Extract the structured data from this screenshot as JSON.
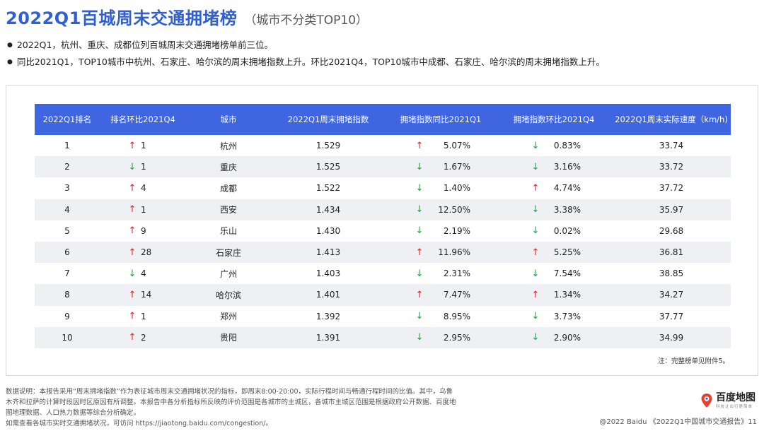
{
  "header": {
    "title": "2022Q1百城周末交通拥堵榜",
    "subtitle": "（城市不分类TOP10）"
  },
  "bullets": [
    "2022Q1，杭州、重庆、成都位列百城周末交通拥堵榜单前三位。",
    "同比2021Q1，TOP10城市中杭州、石家庄、哈尔滨的周末拥堵指数上升。环比2021Q4，TOP10城市中成都、石家庄、哈尔滨的周末拥堵指数上升。"
  ],
  "table": {
    "columns": [
      "2022Q1排名",
      "排名环比2021Q4",
      "城市",
      "2022Q1周末拥堵指数",
      "拥堵指数同比2021Q1",
      "拥堵指数环比2021Q4",
      "2022Q1周末实际速度（km/h)"
    ],
    "rows": [
      {
        "rank": "1",
        "rank_dir": "up",
        "rank_change": "1",
        "city": "杭州",
        "index": "1.529",
        "yoy_dir": "up",
        "yoy": "5.07%",
        "qoq_dir": "down",
        "qoq": "0.83%",
        "speed": "33.74"
      },
      {
        "rank": "2",
        "rank_dir": "down",
        "rank_change": "1",
        "city": "重庆",
        "index": "1.525",
        "yoy_dir": "down",
        "yoy": "1.67%",
        "qoq_dir": "down",
        "qoq": "3.16%",
        "speed": "33.72"
      },
      {
        "rank": "3",
        "rank_dir": "up",
        "rank_change": "4",
        "city": "成都",
        "index": "1.522",
        "yoy_dir": "down",
        "yoy": "1.40%",
        "qoq_dir": "up",
        "qoq": "4.74%",
        "speed": "37.72"
      },
      {
        "rank": "4",
        "rank_dir": "up",
        "rank_change": "1",
        "city": "西安",
        "index": "1.434",
        "yoy_dir": "down",
        "yoy": "12.50%",
        "qoq_dir": "down",
        "qoq": "3.38%",
        "speed": "35.97"
      },
      {
        "rank": "5",
        "rank_dir": "up",
        "rank_change": "9",
        "city": "乐山",
        "index": "1.430",
        "yoy_dir": "down",
        "yoy": "2.19%",
        "qoq_dir": "down",
        "qoq": "0.02%",
        "speed": "29.68"
      },
      {
        "rank": "6",
        "rank_dir": "up",
        "rank_change": "28",
        "city": "石家庄",
        "index": "1.413",
        "yoy_dir": "up",
        "yoy": "11.96%",
        "qoq_dir": "up",
        "qoq": "5.25%",
        "speed": "36.81"
      },
      {
        "rank": "7",
        "rank_dir": "down",
        "rank_change": "4",
        "city": "广州",
        "index": "1.403",
        "yoy_dir": "down",
        "yoy": "2.31%",
        "qoq_dir": "down",
        "qoq": "7.54%",
        "speed": "38.85"
      },
      {
        "rank": "8",
        "rank_dir": "up",
        "rank_change": "14",
        "city": "哈尔滨",
        "index": "1.401",
        "yoy_dir": "up",
        "yoy": "7.47%",
        "qoq_dir": "up",
        "qoq": "1.34%",
        "speed": "34.27"
      },
      {
        "rank": "9",
        "rank_dir": "up",
        "rank_change": "1",
        "city": "郑州",
        "index": "1.392",
        "yoy_dir": "down",
        "yoy": "8.95%",
        "qoq_dir": "down",
        "qoq": "3.73%",
        "speed": "37.77"
      },
      {
        "rank": "10",
        "rank_dir": "up",
        "rank_change": "2",
        "city": "贵阳",
        "index": "1.391",
        "yoy_dir": "down",
        "yoy": "2.95%",
        "qoq_dir": "down",
        "qoq": "2.90%",
        "speed": "34.99"
      }
    ],
    "note": "注：完整榜单见附件5。"
  },
  "arrows": {
    "up": "↑",
    "down": "↓"
  },
  "colors": {
    "accent": "#3f66e0",
    "title": "#2f5fd0",
    "up": "#e02020",
    "down": "#1fa33a"
  },
  "footnote": [
    "数据说明：本报告采用“周末拥堵指数”作为表征城市周末交通拥堵状况的指标，即周末8:00-20:00，实际行程时间与畅通行程时间的比值。其中，乌鲁",
    "木齐和拉萨的计算时段因时区原因有所调整。本报告中各分析指标所反映的评价范围是各城市的主城区，各城市主城区范围是根据政府公开数据、百度地",
    "图地理数据、人口热力数据等综合分析确定。",
    "如需查看各城市实时交通拥堵状况，可访问 https://jiaotong.baidu.com/congestion/。"
  ],
  "brand": {
    "name": "百度地图",
    "slogan": "科技让出行更简单",
    "icon": "map-pin-icon"
  },
  "copyright": "@2022 Baidu 《2022Q1中国城市交通报告》11"
}
